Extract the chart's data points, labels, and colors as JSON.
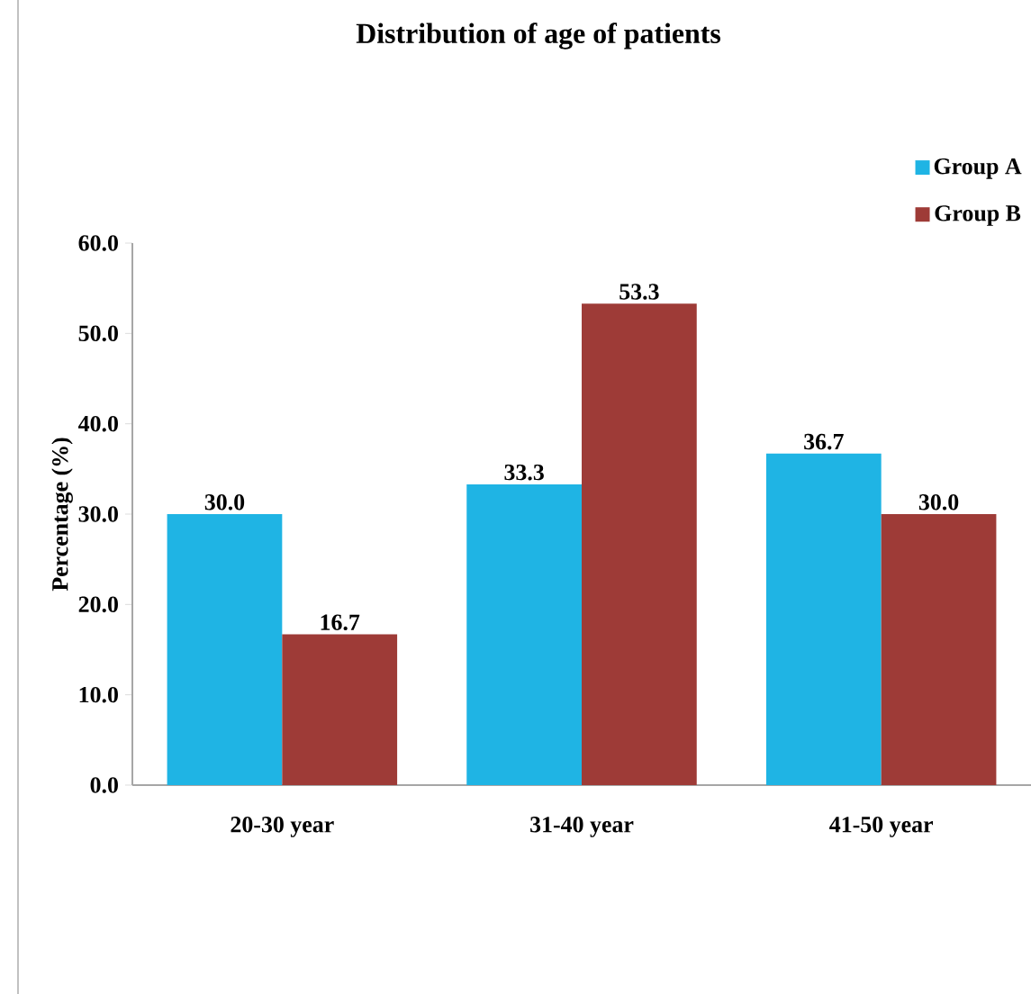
{
  "chart_data": {
    "type": "bar",
    "title": "Distribution of age of patients",
    "ylabel": "Percentage (%)",
    "categories": [
      "20-30 year",
      "31-40 year",
      "41-50 year"
    ],
    "series": [
      {
        "name": "Group A",
        "color": "#1fb4e4",
        "values": [
          30.0,
          33.3,
          36.7
        ],
        "value_labels": [
          "30.0",
          "33.3",
          "36.7"
        ]
      },
      {
        "name": "Group B",
        "color": "#9e3b37",
        "values": [
          16.7,
          53.3,
          30.0
        ],
        "value_labels": [
          "16.7",
          "53.3",
          "30.0"
        ]
      }
    ],
    "ylim": [
      0,
      60
    ],
    "yticks": [
      {
        "value": 0,
        "label": "0.0"
      },
      {
        "value": 10,
        "label": "10.0"
      },
      {
        "value": 20,
        "label": "20.0"
      },
      {
        "value": 30,
        "label": "30.0"
      },
      {
        "value": 40,
        "label": "40.0"
      },
      {
        "value": 50,
        "label": "50.0"
      },
      {
        "value": 60,
        "label": "60.0"
      }
    ],
    "grid": false,
    "legend": "top right"
  }
}
